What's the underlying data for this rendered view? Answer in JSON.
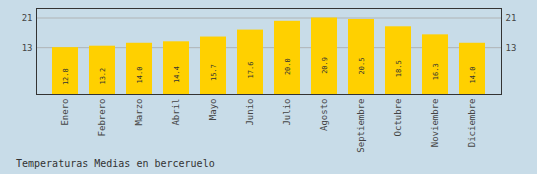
{
  "chart_data": {
    "type": "bar",
    "title": "Temperaturas Medias en berceruelo",
    "categories": [
      "Enero",
      "Febrero",
      "Marzo",
      "Abril",
      "Mayo",
      "Junio",
      "Julio",
      "Agosto",
      "Septiembre",
      "Octubre",
      "Noviembre",
      "Diciembre"
    ],
    "values": [
      12.8,
      13.2,
      14.0,
      14.4,
      15.7,
      17.6,
      20.0,
      20.9,
      20.5,
      18.5,
      16.3,
      14.0
    ],
    "value_labels": [
      "12.8",
      "13.2",
      "14.0",
      "14.4",
      "15.7",
      "17.6",
      "20.0",
      "20.9",
      "20.5",
      "18.5",
      "16.3",
      "14.0"
    ],
    "color": "#FFD000",
    "ylim": [
      0.0,
      23.5
    ],
    "yticks": [
      12.8,
      20.9
    ],
    "grid": true,
    "data_labels": true
  }
}
